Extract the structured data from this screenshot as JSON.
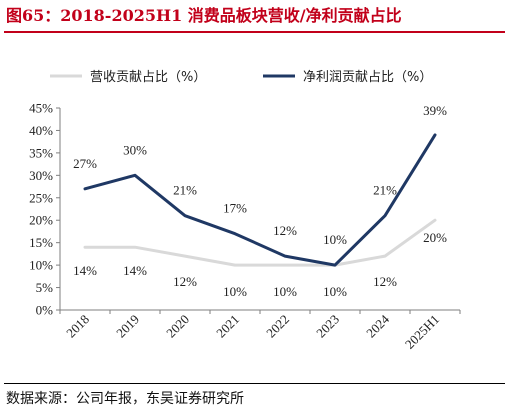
{
  "header": {
    "title": "图65：2018-2025H1 消费品板块营收/净利贡献占比"
  },
  "footer": {
    "source": "数据来源：公司年报，东吴证券研究所"
  },
  "chart_data": {
    "type": "line",
    "categories": [
      "2018",
      "2019",
      "2020",
      "2021",
      "2022",
      "2023",
      "2024",
      "2025H1"
    ],
    "series": [
      {
        "name": "营收贡献占比（%）",
        "values": [
          14,
          14,
          12,
          10,
          10,
          10,
          12,
          20
        ],
        "labels": [
          "14%",
          "14%",
          "12%",
          "10%",
          "10%",
          "10%",
          "12%",
          "20%"
        ],
        "color": "#d9d9d9"
      },
      {
        "name": "净利润贡献占比（%）",
        "values": [
          27,
          30,
          21,
          17,
          12,
          10,
          21,
          39
        ],
        "labels": [
          "27%",
          "30%",
          "21%",
          "17%",
          "12%",
          "10%",
          "21%",
          "39%"
        ],
        "color": "#1f3864"
      }
    ],
    "ylim": [
      0,
      45
    ],
    "yticks": [
      "0%",
      "5%",
      "10%",
      "15%",
      "20%",
      "25%",
      "30%",
      "35%",
      "40%",
      "45%"
    ],
    "xlabel": "",
    "ylabel": "",
    "grid": false,
    "legend": "top"
  }
}
